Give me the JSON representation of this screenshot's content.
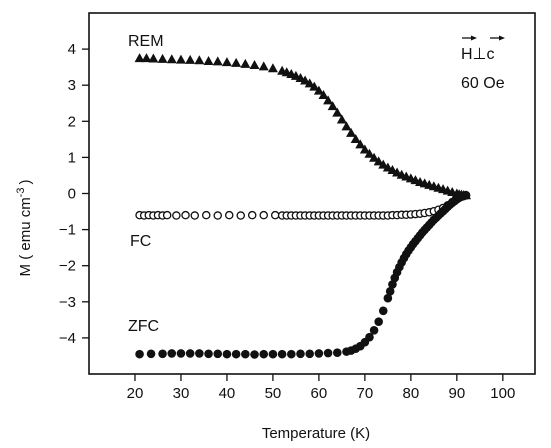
{
  "chart_data": {
    "type": "scatter",
    "xlabel": "Temperature (K)",
    "ylabel": "M ( emu cm",
    "ylabel_superscript": "-3",
    "ylabel_close": ")",
    "xlim": [
      10,
      107
    ],
    "ylim": [
      -5.0,
      5.0
    ],
    "xticks": [
      20,
      30,
      40,
      50,
      60,
      70,
      80,
      90,
      100
    ],
    "xtick_labels": [
      "20",
      "30",
      "40",
      "50",
      "60",
      "70",
      "80",
      "90",
      "100"
    ],
    "yticks": [
      -4,
      -3,
      -2,
      -1,
      0,
      1,
      2,
      3,
      4
    ],
    "ytick_labels": [
      "−4",
      "−3",
      "−2",
      "−1",
      "0",
      "1",
      "2",
      "3",
      "4"
    ],
    "grid": false,
    "annotations": {
      "field_label": "H⊥c",
      "field_value": "60 Oe"
    },
    "series": [
      {
        "name": "REM",
        "marker": "triangle-filled",
        "color": "#111111",
        "x": [
          21,
          22.5,
          24,
          26,
          28,
          30,
          32,
          34,
          36,
          38,
          40,
          42,
          44,
          46,
          48,
          50,
          52,
          53,
          54,
          55,
          56,
          57,
          58,
          59,
          60,
          61,
          62,
          63,
          64,
          65,
          66,
          67,
          68,
          69,
          70,
          71,
          72,
          73,
          74,
          75,
          76,
          77,
          78,
          79,
          80,
          81,
          82,
          83,
          84,
          85,
          86,
          87,
          88,
          89,
          90,
          90.5,
          91,
          91.5,
          92
        ],
        "y": [
          3.75,
          3.75,
          3.74,
          3.73,
          3.72,
          3.71,
          3.7,
          3.69,
          3.67,
          3.66,
          3.64,
          3.62,
          3.59,
          3.56,
          3.52,
          3.47,
          3.4,
          3.36,
          3.31,
          3.26,
          3.2,
          3.13,
          3.05,
          2.96,
          2.85,
          2.73,
          2.58,
          2.42,
          2.24,
          2.05,
          1.86,
          1.68,
          1.51,
          1.36,
          1.22,
          1.1,
          0.99,
          0.89,
          0.8,
          0.72,
          0.65,
          0.58,
          0.52,
          0.47,
          0.42,
          0.37,
          0.32,
          0.28,
          0.24,
          0.2,
          0.16,
          0.12,
          0.08,
          0.04,
          0.0,
          -0.02,
          -0.03,
          -0.04,
          -0.05
        ]
      },
      {
        "name": "FC",
        "marker": "circle-open",
        "color": "#111111",
        "x": [
          21,
          22,
          23,
          24,
          25,
          26,
          27,
          29,
          31,
          33,
          35.5,
          38,
          40.5,
          43,
          45.5,
          48,
          50.5,
          52,
          53,
          54,
          55,
          56,
          57,
          58,
          59,
          60,
          61,
          62,
          63,
          64,
          65,
          66,
          67,
          68,
          69,
          70,
          71,
          72,
          73,
          74,
          75,
          76,
          77,
          78,
          79,
          80,
          81,
          82,
          83,
          84,
          85,
          86,
          87,
          88,
          89,
          90,
          90.5,
          91,
          91.5,
          92
        ],
        "y": [
          -0.6,
          -0.61,
          -0.6,
          -0.61,
          -0.6,
          -0.61,
          -0.6,
          -0.61,
          -0.6,
          -0.61,
          -0.6,
          -0.61,
          -0.6,
          -0.61,
          -0.6,
          -0.6,
          -0.6,
          -0.61,
          -0.61,
          -0.61,
          -0.61,
          -0.61,
          -0.61,
          -0.61,
          -0.61,
          -0.61,
          -0.61,
          -0.61,
          -0.61,
          -0.61,
          -0.61,
          -0.61,
          -0.61,
          -0.61,
          -0.61,
          -0.61,
          -0.61,
          -0.61,
          -0.61,
          -0.61,
          -0.61,
          -0.6,
          -0.6,
          -0.59,
          -0.59,
          -0.58,
          -0.57,
          -0.56,
          -0.54,
          -0.52,
          -0.49,
          -0.45,
          -0.4,
          -0.33,
          -0.24,
          -0.15,
          -0.11,
          -0.08,
          -0.06,
          -0.05
        ]
      },
      {
        "name": "ZFC",
        "marker": "circle-filled",
        "color": "#111111",
        "x": [
          21,
          23.5,
          26,
          28,
          30,
          32,
          34,
          36,
          38,
          40,
          42,
          44,
          46,
          48,
          50,
          52,
          54,
          56,
          58,
          60,
          62,
          64,
          66,
          67,
          68,
          69,
          70,
          71,
          72,
          73,
          74,
          75,
          75.5,
          76,
          76.5,
          77,
          77.5,
          78,
          78.5,
          79,
          79.5,
          80,
          80.5,
          81,
          81.5,
          82,
          82.5,
          83,
          83.5,
          84,
          84.5,
          85,
          85.5,
          86,
          86.5,
          87,
          87.5,
          88,
          88.5,
          89,
          89.5,
          90,
          90.5,
          91,
          91.5,
          92
        ],
        "y": [
          -4.45,
          -4.44,
          -4.44,
          -4.43,
          -4.43,
          -4.43,
          -4.43,
          -4.44,
          -4.44,
          -4.45,
          -4.45,
          -4.45,
          -4.46,
          -4.45,
          -4.45,
          -4.45,
          -4.45,
          -4.44,
          -4.44,
          -4.43,
          -4.42,
          -4.41,
          -4.38,
          -4.35,
          -4.3,
          -4.23,
          -4.12,
          -3.98,
          -3.79,
          -3.55,
          -3.25,
          -2.9,
          -2.71,
          -2.52,
          -2.34,
          -2.18,
          -2.04,
          -1.91,
          -1.79,
          -1.68,
          -1.58,
          -1.49,
          -1.4,
          -1.32,
          -1.24,
          -1.16,
          -1.08,
          -1.01,
          -0.94,
          -0.87,
          -0.8,
          -0.73,
          -0.67,
          -0.61,
          -0.55,
          -0.49,
          -0.43,
          -0.37,
          -0.31,
          -0.26,
          -0.21,
          -0.16,
          -0.12,
          -0.09,
          -0.07,
          -0.05
        ]
      }
    ]
  }
}
